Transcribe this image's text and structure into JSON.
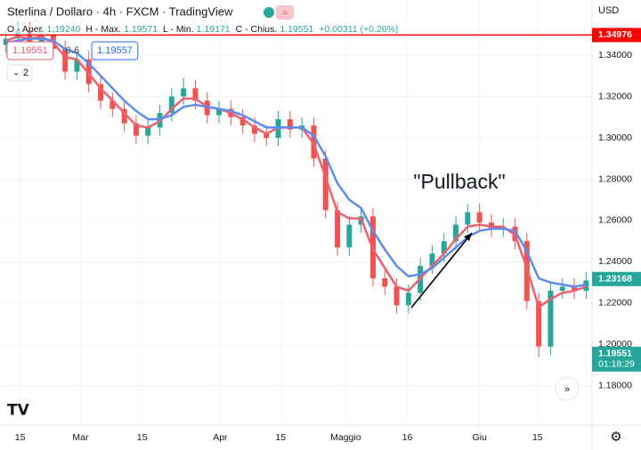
{
  "chart_data": {
    "type": "candlestick",
    "title": "Sterlina / Dollaro · 4h · FXCM · TradingView",
    "ohlc": [
      {
        "label": "O - Aper.",
        "value": "1.19240"
      },
      {
        "label": "H - Max.",
        "value": "1.19571"
      },
      {
        "label": "L - Min.",
        "value": "1.19171"
      },
      {
        "label": "C - Chius.",
        "value": "1.19551"
      },
      {
        "label": "",
        "value": "+0.00311 (+0.26%)"
      }
    ],
    "indicator_labels": [
      {
        "text": "1.19551",
        "color": "#ef5f6d"
      },
      {
        "text": "0.6",
        "color": "#444444"
      },
      {
        "text": "1.19557",
        "color": "#2962ff"
      }
    ],
    "collapse_label": "2",
    "currency": "USD",
    "annotation": "\"Pullback\"",
    "up_color": "#26a69a",
    "down_color": "#ef5350",
    "x": [
      0.5,
      1.5,
      2.5,
      3.5,
      4.5,
      5.5,
      6.5,
      7.5,
      8.5,
      9.5,
      10.5,
      11.5,
      12.5,
      13.5,
      14.5,
      15.5,
      16.5,
      17.5,
      18.5,
      19.5,
      20.5,
      21.5,
      22.5,
      23.5,
      24.5,
      25.5,
      26.5,
      27.5,
      28.5,
      29.5,
      30.5,
      31.5,
      32.5,
      33.5,
      34.5,
      35.5,
      36.5,
      37.5,
      38.5,
      39.5,
      40.5,
      41.5,
      42.5,
      43.5,
      44.5,
      45.5,
      46.5,
      47.5,
      48.5,
      49.5
    ],
    "open": [
      1.345,
      1.348,
      1.352,
      1.346,
      1.35,
      1.343,
      1.332,
      1.338,
      1.326,
      1.318,
      1.314,
      1.307,
      1.301,
      1.305,
      1.312,
      1.32,
      1.324,
      1.318,
      1.311,
      1.314,
      1.31,
      1.306,
      1.302,
      1.3,
      1.309,
      1.304,
      1.306,
      1.29,
      1.265,
      1.247,
      1.258,
      1.262,
      1.232,
      1.228,
      1.219,
      1.225,
      1.238,
      1.244,
      1.25,
      1.258,
      1.264,
      1.259,
      1.256,
      1.257,
      1.25,
      1.221,
      1.199,
      1.226,
      1.228,
      1.226
    ],
    "high": [
      1.352,
      1.356,
      1.356,
      1.354,
      1.354,
      1.347,
      1.342,
      1.342,
      1.33,
      1.322,
      1.318,
      1.311,
      1.309,
      1.316,
      1.324,
      1.329,
      1.328,
      1.322,
      1.318,
      1.318,
      1.314,
      1.31,
      1.306,
      1.313,
      1.313,
      1.31,
      1.31,
      1.294,
      1.269,
      1.262,
      1.266,
      1.266,
      1.236,
      1.232,
      1.229,
      1.242,
      1.248,
      1.254,
      1.262,
      1.268,
      1.268,
      1.263,
      1.261,
      1.261,
      1.254,
      1.225,
      1.23,
      1.232,
      1.232,
      1.235
    ],
    "low": [
      1.341,
      1.344,
      1.342,
      1.342,
      1.339,
      1.328,
      1.328,
      1.322,
      1.314,
      1.31,
      1.303,
      1.297,
      1.297,
      1.301,
      1.308,
      1.316,
      1.314,
      1.307,
      1.307,
      1.306,
      1.302,
      1.298,
      1.296,
      1.296,
      1.3,
      1.3,
      1.286,
      1.261,
      1.243,
      1.243,
      1.254,
      1.228,
      1.224,
      1.215,
      1.215,
      1.221,
      1.234,
      1.24,
      1.246,
      1.254,
      1.255,
      1.252,
      1.252,
      1.246,
      1.217,
      1.194,
      1.195,
      1.222,
      1.222,
      1.222
    ],
    "close": [
      1.348,
      1.352,
      1.346,
      1.35,
      1.343,
      1.332,
      1.338,
      1.326,
      1.318,
      1.314,
      1.307,
      1.301,
      1.305,
      1.312,
      1.32,
      1.324,
      1.318,
      1.311,
      1.314,
      1.31,
      1.306,
      1.302,
      1.3,
      1.309,
      1.304,
      1.306,
      1.29,
      1.265,
      1.247,
      1.258,
      1.262,
      1.232,
      1.228,
      1.219,
      1.225,
      1.238,
      1.244,
      1.25,
      1.258,
      1.264,
      1.259,
      1.256,
      1.257,
      1.25,
      1.221,
      1.199,
      1.226,
      1.228,
      1.226,
      1.231
    ],
    "series": [
      {
        "color": "#ef5f6d",
        "values": [
          1.347,
          1.349,
          1.348,
          1.349,
          1.346,
          1.339,
          1.338,
          1.331,
          1.324,
          1.318,
          1.312,
          1.306,
          1.305,
          1.308,
          1.314,
          1.319,
          1.319,
          1.315,
          1.314,
          1.312,
          1.309,
          1.305,
          1.302,
          1.305,
          1.305,
          1.305,
          1.297,
          1.281,
          1.264,
          1.261,
          1.261,
          1.246,
          1.237,
          1.228,
          1.226,
          1.232,
          1.238,
          1.244,
          1.251,
          1.257,
          1.258,
          1.257,
          1.257,
          1.253,
          1.237,
          1.218,
          1.222,
          1.225,
          1.226,
          1.228
        ]
      },
      {
        "color": "#5b8def",
        "values": [
          1.346,
          1.347,
          1.348,
          1.348,
          1.347,
          1.343,
          1.341,
          1.336,
          1.33,
          1.324,
          1.318,
          1.313,
          1.309,
          1.309,
          1.311,
          1.315,
          1.316,
          1.315,
          1.314,
          1.313,
          1.311,
          1.308,
          1.305,
          1.305,
          1.305,
          1.305,
          1.301,
          1.291,
          1.278,
          1.27,
          1.266,
          1.255,
          1.246,
          1.238,
          1.233,
          1.234,
          1.237,
          1.242,
          1.247,
          1.252,
          1.255,
          1.256,
          1.256,
          1.255,
          1.245,
          1.232,
          1.23,
          1.229,
          1.228,
          1.229
        ]
      }
    ],
    "price_labels": [
      {
        "value": 1.34976,
        "color": "#ff0000",
        "line": true
      },
      {
        "value": 1.23168,
        "color": "#26a69a"
      },
      {
        "value": 1.19551,
        "color": "#26a69a",
        "countdown": "01:18:29"
      }
    ],
    "xlim": [
      0,
      50
    ],
    "xticks": [
      {
        "value": 1.7,
        "label": "15"
      },
      {
        "value": 6.8,
        "label": "Mar"
      },
      {
        "value": 12,
        "label": "15"
      },
      {
        "value": 18.6,
        "label": "Apr"
      },
      {
        "value": 23.7,
        "label": "15"
      },
      {
        "value": 29.2,
        "label": "Maggio"
      },
      {
        "value": 34.4,
        "label": "16"
      },
      {
        "value": 40.5,
        "label": "Giu"
      },
      {
        "value": 45.4,
        "label": "15"
      }
    ],
    "ylim": [
      1.161,
      1.3667
    ],
    "yticks": [
      {
        "value": 1.18,
        "label": "1.18000"
      },
      {
        "value": 1.2,
        "label": "1.20000"
      },
      {
        "value": 1.22,
        "label": "1.22000"
      },
      {
        "value": 1.24,
        "label": "1.24000"
      },
      {
        "value": 1.26,
        "label": "1.26000"
      },
      {
        "value": 1.28,
        "label": "1.28000"
      },
      {
        "value": 1.3,
        "label": "1.30000"
      },
      {
        "value": 1.32,
        "label": "1.32000"
      },
      {
        "value": 1.34,
        "label": "1.34000"
      }
    ]
  }
}
